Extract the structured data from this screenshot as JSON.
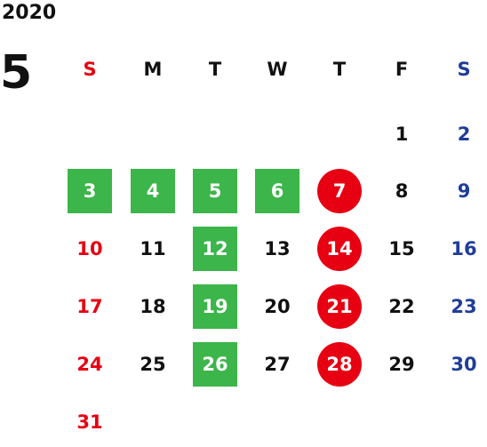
{
  "calendar": {
    "year": "2020",
    "month": "5",
    "weekdays": [
      "S",
      "M",
      "T",
      "W",
      "T",
      "F",
      "S"
    ],
    "weekday_colors": [
      "#e60012",
      "#111111",
      "#111111",
      "#111111",
      "#111111",
      "#111111",
      "#1f3d99"
    ],
    "first_weekday_index": 5,
    "days_in_month": 31,
    "green_square_days": [
      3,
      4,
      5,
      6,
      12,
      19,
      26
    ],
    "red_circle_days": [
      7,
      14,
      21,
      28
    ],
    "colors": {
      "sunday_text": "#e60012",
      "saturday_text": "#1f3d99",
      "green_highlight": "#3cb54a",
      "red_highlight": "#e60012"
    }
  }
}
